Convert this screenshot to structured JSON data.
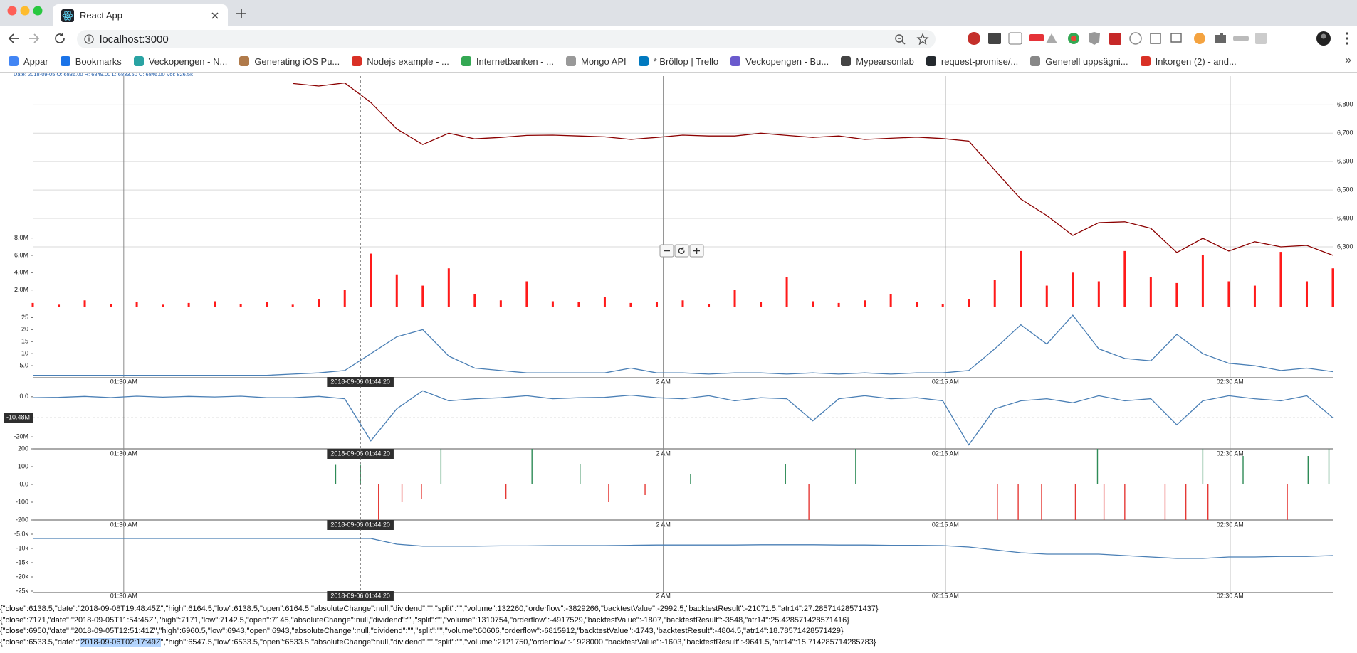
{
  "browser": {
    "tab_title": "React App",
    "url": "localhost:3000",
    "bookmarks": [
      "Appar",
      "Bookmarks",
      "Veckopengen - N...",
      "Generating iOS Pu...",
      "Nodejs example - ...",
      "Internetbanken - ...",
      "Mongo API",
      "* Bröllop | Trello",
      "Veckopengen - Bu...",
      "Mypearsonlab",
      "request-promise/...",
      "Generell uppsägni...",
      "Inkorgen (2) - and..."
    ],
    "bookmarks_overflow": "»"
  },
  "chart_data": [
    {
      "type": "line",
      "annotation": "Date: 2018-09-05 O: 6836.00 H: 6849.00 L: 6833.50 C: 6846.00 Vol: 826.5k",
      "color": "#8b0000",
      "x": [
        0,
        2,
        4,
        6,
        8,
        10,
        12,
        14,
        16,
        18,
        20,
        22,
        24,
        26,
        28,
        30,
        32,
        34,
        36,
        38,
        40,
        42,
        44,
        46,
        48,
        50,
        52,
        54,
        56,
        58,
        60,
        62,
        64,
        66,
        68,
        70,
        72,
        74,
        76,
        78,
        80,
        82,
        84,
        86,
        88,
        90,
        92,
        94,
        96,
        98,
        100
      ],
      "values": [
        null,
        null,
        null,
        null,
        null,
        null,
        null,
        null,
        null,
        null,
        6875,
        6866,
        6877,
        6808,
        6715,
        6660,
        6700,
        6680,
        6685,
        6692,
        6693,
        6690,
        6687,
        6678,
        6685,
        6693,
        6690,
        6690,
        6700,
        6692,
        6685,
        6690,
        6678,
        6682,
        6686,
        6681,
        6672,
        6570,
        6468,
        6410,
        6340,
        6385,
        6388,
        6365,
        6280,
        6330,
        6285,
        6318,
        6300,
        6305,
        6270
      ],
      "xlim": [
        0,
        100
      ],
      "ylim": [
        6087,
        6901
      ],
      "grid": true,
      "yticks": [
        {
          "value": 6300,
          "label": "6,300"
        },
        {
          "value": 6400,
          "label": "6,400"
        },
        {
          "value": 6500,
          "label": "6,500"
        },
        {
          "value": 6600,
          "label": "6,600"
        },
        {
          "value": 6700,
          "label": "6,700"
        },
        {
          "value": 6800,
          "label": "6,800"
        }
      ]
    },
    {
      "type": "bar",
      "color": "#ff1a1a",
      "x": [
        0,
        2,
        4,
        6,
        8,
        10,
        12,
        14,
        16,
        18,
        20,
        22,
        24,
        26,
        28,
        30,
        32,
        34,
        36,
        38,
        40,
        42,
        44,
        46,
        48,
        50,
        52,
        54,
        56,
        58,
        60,
        62,
        64,
        66,
        68,
        70,
        72,
        74,
        76,
        78,
        80,
        82,
        84,
        86,
        88,
        90,
        92,
        94,
        96,
        98,
        100
      ],
      "values": [
        500000,
        300000,
        800000,
        400000,
        600000,
        300000,
        500000,
        700000,
        400000,
        600000,
        300000,
        900000,
        2000000,
        6200000,
        3800000,
        2500000,
        4500000,
        1500000,
        800000,
        3000000,
        700000,
        600000,
        1200000,
        500000,
        600000,
        800000,
        400000,
        2000000,
        600000,
        3500000,
        700000,
        500000,
        800000,
        1500000,
        600000,
        400000,
        900000,
        3200000,
        6500000,
        2500000,
        4000000,
        3000000,
        6500000,
        3500000,
        2800000,
        6000000,
        3000000,
        2500000,
        6400000,
        3000000,
        4500000
      ],
      "xlim": [
        0,
        100
      ],
      "ylim": [
        0,
        26700000
      ],
      "yticks": [
        {
          "value": 2000000,
          "label": "2.0M"
        },
        {
          "value": 4000000,
          "label": "4.0M"
        },
        {
          "value": 6000000,
          "label": "6.0M"
        },
        {
          "value": 8000000,
          "label": "8.0M"
        }
      ]
    },
    {
      "type": "line",
      "color": "#4a7fb5",
      "x": [
        0,
        2,
        4,
        6,
        8,
        10,
        12,
        14,
        16,
        18,
        20,
        22,
        24,
        26,
        28,
        30,
        32,
        34,
        36,
        38,
        40,
        42,
        44,
        46,
        48,
        50,
        52,
        54,
        56,
        58,
        60,
        62,
        64,
        66,
        68,
        70,
        72,
        74,
        76,
        78,
        80,
        82,
        84,
        86,
        88,
        90,
        92,
        94,
        96,
        98,
        100
      ],
      "values": [
        1,
        1,
        1,
        1,
        1,
        1,
        1,
        1,
        1,
        1,
        1.5,
        2,
        3,
        10,
        17,
        20,
        9,
        4,
        3,
        2,
        2,
        2,
        2,
        4,
        2,
        2,
        1.5,
        2,
        2,
        1.5,
        2,
        1.5,
        2,
        1.5,
        2,
        2,
        3,
        12,
        22,
        14,
        26,
        12,
        8,
        7,
        18,
        10,
        6,
        5,
        3,
        4,
        2.5
      ],
      "xlim": [
        0,
        100
      ],
      "ylim": [
        0,
        27.5
      ],
      "yticks": [
        {
          "value": 5,
          "label": "5.0"
        },
        10,
        15,
        20,
        25
      ],
      "xticks": [
        {
          "value": 7,
          "label": "01:30 AM"
        },
        {
          "value": 48.5,
          "label": "2 AM"
        },
        {
          "value": 70.2,
          "label": "02:15 AM"
        },
        {
          "value": 92.1,
          "label": "02:30 AM"
        }
      ],
      "crosshair_x": {
        "value": 25.2,
        "label": "2018-09-06 01:44:20"
      }
    },
    {
      "type": "line",
      "color": "#4a7fb5",
      "x": [
        0,
        2,
        4,
        6,
        8,
        10,
        12,
        14,
        16,
        18,
        20,
        22,
        24,
        26,
        28,
        30,
        32,
        34,
        36,
        38,
        40,
        42,
        44,
        46,
        48,
        50,
        52,
        54,
        56,
        58,
        60,
        62,
        64,
        66,
        68,
        70,
        72,
        74,
        76,
        78,
        80,
        82,
        84,
        86,
        88,
        90,
        92,
        94,
        96,
        98,
        100
      ],
      "values": [
        -500000,
        -300000,
        200000,
        -400000,
        300000,
        -200000,
        200000,
        -100000,
        300000,
        -500000,
        -500000,
        200000,
        -1000000,
        -22000000,
        -6000000,
        3000000,
        -2000000,
        -1000000,
        -500000,
        500000,
        -1000000,
        -500000,
        -300000,
        800000,
        -500000,
        -1000000,
        500000,
        -2000000,
        -500000,
        -1000000,
        -12000000,
        -1000000,
        500000,
        -1000000,
        -500000,
        -2000000,
        -24000000,
        -6000000,
        -2000000,
        -1000000,
        -3000000,
        500000,
        -2000000,
        -1000000,
        -14000000,
        -2000000,
        500000,
        -1000000,
        -2000000,
        500000,
        -10480000
      ],
      "xlim": [
        0,
        100
      ],
      "ylim": [
        -26000000,
        7400000
      ],
      "yticks": [
        {
          "value": 0,
          "label": "0.0"
        },
        {
          "value": -20000000,
          "label": "-20M"
        }
      ],
      "xticks": [
        {
          "value": 7,
          "label": "01:30 AM"
        },
        {
          "value": 48.5,
          "label": "2 AM"
        },
        {
          "value": 70.2,
          "label": "02:15 AM"
        },
        {
          "value": 92.1,
          "label": "02:30 AM"
        }
      ],
      "crosshair_x": {
        "value": 25.2,
        "label": "2018-09-06 01:44:20"
      },
      "crosshair_y": {
        "value": -10480000,
        "label": "-10.48M"
      }
    },
    {
      "type": "bar",
      "series": [
        {
          "color": "#2e8b57",
          "x": [
            23.3,
            25.2,
            31.4,
            38.4,
            42.1,
            50.6,
            57.9,
            63.3,
            81.9,
            90,
            93.1,
            98.1,
            99.7
          ],
          "values": [
            110,
            110,
            200,
            200,
            115,
            60,
            115,
            200,
            200,
            200,
            160,
            160,
            200
          ]
        },
        {
          "color": "#e53935",
          "x": [
            26.6,
            28.4,
            29.9,
            36.4,
            44.3,
            47.1,
            59.7,
            74.2,
            75.8,
            77.6,
            80.2,
            82.4,
            84,
            87.1,
            88.7,
            90.4,
            96.5
          ],
          "values": [
            -200,
            -100,
            -80,
            -80,
            -100,
            -60,
            -200,
            -200,
            -200,
            -200,
            -200,
            -200,
            -200,
            -200,
            -200,
            -200,
            -200
          ]
        }
      ],
      "xlim": [
        0,
        100
      ],
      "ylim": [
        -200,
        200
      ],
      "yticks": [
        200,
        100,
        {
          "value": 0,
          "label": "0.0"
        },
        -100,
        -200
      ],
      "xticks": [
        {
          "value": 7,
          "label": "01:30 AM"
        },
        {
          "value": 48.5,
          "label": "2 AM"
        },
        {
          "value": 70.2,
          "label": "02:15 AM"
        },
        {
          "value": 92.1,
          "label": "02:30 AM"
        }
      ],
      "crosshair_x": {
        "value": 25.2,
        "label": "2018-09-06 01:44:20"
      }
    },
    {
      "type": "line",
      "color": "#4a7fb5",
      "x": [
        0,
        2,
        4,
        6,
        8,
        10,
        12,
        14,
        16,
        18,
        20,
        22,
        24,
        26,
        28,
        30,
        32,
        34,
        36,
        38,
        40,
        42,
        44,
        46,
        48,
        50,
        52,
        54,
        56,
        58,
        60,
        62,
        64,
        66,
        68,
        70,
        72,
        74,
        76,
        78,
        80,
        82,
        84,
        86,
        88,
        90,
        92,
        94,
        96,
        98,
        100
      ],
      "values": [
        -6500,
        -6500,
        -6500,
        -6500,
        -6500,
        -6500,
        -6500,
        -6500,
        -6500,
        -6500,
        -6500,
        -6500,
        -6500,
        -6500,
        -8500,
        -9200,
        -9200,
        -9200,
        -9100,
        -9100,
        -9000,
        -9000,
        -9000,
        -8900,
        -8800,
        -8800,
        -8800,
        -8800,
        -8700,
        -8700,
        -8700,
        -8800,
        -8800,
        -8900,
        -8900,
        -9000,
        -9500,
        -10500,
        -11500,
        -12000,
        -12000,
        -12000,
        -12500,
        -13000,
        -13500,
        -13500,
        -13000,
        -13000,
        -12800,
        -12800,
        -12500
      ],
      "xlim": [
        0,
        100
      ],
      "ylim": [
        -25500,
        0
      ],
      "yticks": [
        {
          "value": -5000,
          "label": "-5.0k"
        },
        {
          "value": -10000,
          "label": "-10k"
        },
        {
          "value": -15000,
          "label": "-15k"
        },
        {
          "value": -20000,
          "label": "-20k"
        },
        {
          "value": -25000,
          "label": "-25k"
        }
      ],
      "xticks": [
        {
          "value": 7,
          "label": "01:30 AM"
        },
        {
          "value": 48.5,
          "label": "2 AM"
        },
        {
          "value": 70.2,
          "label": "02:15 AM"
        },
        {
          "value": 92.1,
          "label": "02:30 AM"
        }
      ],
      "crosshair_x": {
        "value": 25.2,
        "label": "2018-09-06 01:44:20"
      }
    }
  ],
  "console": {
    "lines": [
      "{\"close\":6138.5,\"date\":\"2018-09-08T19:48:45Z\",\"high\":6164.5,\"low\":6138.5,\"open\":6164.5,\"absoluteChange\":null,\"dividend\":\"\",\"split\":\"\",\"volume\":132260,\"orderflow\":-3829266,\"backtestValue\":-2992.5,\"backtestResult\":-21071.5,\"atr14\":27.28571428571437}",
      "{\"close\":7171,\"date\":\"2018-09-05T11:54:45Z\",\"high\":7171,\"low\":7142.5,\"open\":7145,\"absoluteChange\":null,\"dividend\":\"\",\"split\":\"\",\"volume\":1310754,\"orderflow\":-4917529,\"backtestValue\":-1807,\"backtestResult\":-3548,\"atr14\":25.428571428571416}",
      "{\"close\":6950,\"date\":\"2018-09-05T12:51:41Z\",\"high\":6960.5,\"low\":6943,\"open\":6943,\"absoluteChange\":null,\"dividend\":\"\",\"split\":\"\",\"volume\":60606,\"orderflow\":-6815912,\"backtestValue\":-1743,\"backtestResult\":-4804.5,\"atr14\":18.78571428571429}"
    ],
    "selected_line": {
      "before": "{\"close\":6533.5,\"date\":\"",
      "selected": "2018-09-06T02:17:49Z",
      "after": "\",\"high\":6547.5,\"low\":6533.5,\"open\":6533.5,\"absoluteChange\":null,\"dividend\":\"\",\"split\":\"\",\"volume\":2121750,\"orderflow\":-1928000,\"backtestValue\":-1603,\"backtestResult\":-9641.5,\"atr14\":15.714285714285783}"
    }
  }
}
